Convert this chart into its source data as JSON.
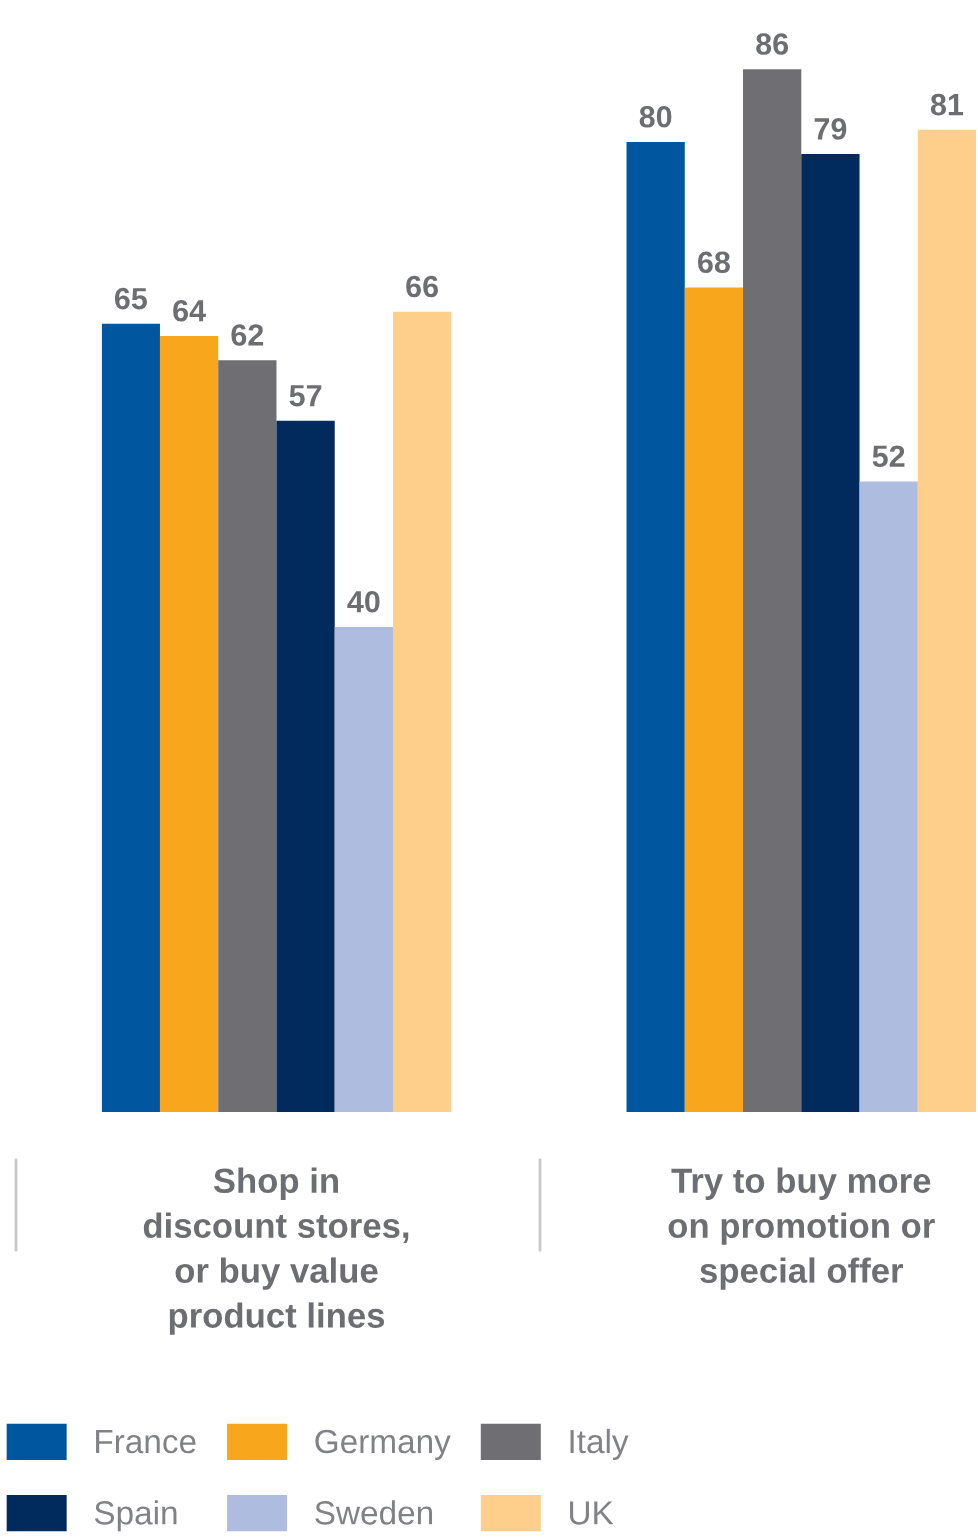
{
  "chart_data": {
    "type": "bar",
    "categories": [
      "Shop in\ndiscount stores,\nor buy value\nproduct lines",
      "Try to buy more\non promotion or\nspecial offer"
    ],
    "series": [
      {
        "name": "France",
        "color": "#0057a0",
        "values": [
          65,
          80
        ]
      },
      {
        "name": "Germany",
        "color": "#f8a61c",
        "values": [
          64,
          68
        ]
      },
      {
        "name": "Italy",
        "color": "#6f6f73",
        "values": [
          62,
          86
        ]
      },
      {
        "name": "Spain",
        "color": "#002b5c",
        "values": [
          57,
          79
        ]
      },
      {
        "name": "Sweden",
        "color": "#aebce0",
        "values": [
          40,
          52
        ]
      },
      {
        "name": "UK",
        "color": "#fdcf8b",
        "values": [
          66,
          81
        ]
      }
    ],
    "data_labels": true,
    "legend": "bottom"
  }
}
